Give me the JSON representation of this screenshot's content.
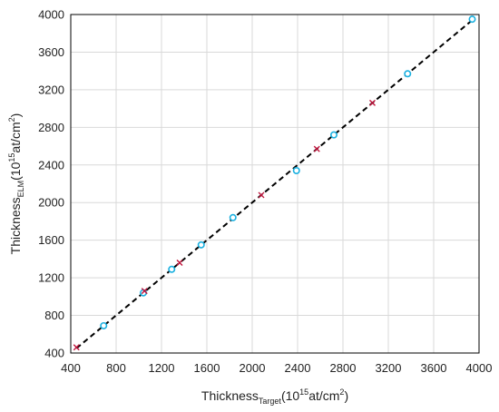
{
  "chart_data": {
    "type": "scatter",
    "title": "",
    "xlabel": {
      "main": "Thickness",
      "sub": "Target",
      "pre": "(10",
      "sup": "15",
      "post": "at/cm",
      "sup2": "2",
      "end": ")"
    },
    "ylabel": {
      "main": "Thickness",
      "sub": "ELM",
      "pre": "(10",
      "sup": "15",
      "post": "at/cm",
      "sup2": "2",
      "end": ")"
    },
    "xlim": [
      400,
      4000
    ],
    "ylim": [
      400,
      4000
    ],
    "xticks": [
      400,
      800,
      1200,
      1600,
      2000,
      2400,
      2800,
      3200,
      3600,
      4000
    ],
    "yticks": [
      400,
      800,
      1200,
      1600,
      2000,
      2400,
      2800,
      3200,
      3600,
      4000
    ],
    "tick_labels_x": [
      "400",
      "800",
      "1200",
      "1600",
      "2000",
      "2400",
      "2800",
      "3200",
      "3600",
      "4000"
    ],
    "tick_labels_y": [
      "400",
      "800",
      "1200",
      "1600",
      "2000",
      "2400",
      "2800",
      "3200",
      "3600",
      "4000"
    ],
    "grid": true,
    "legend": "none",
    "series": [
      {
        "marker": "circle",
        "color": "#1ab0e0",
        "x": [
          690,
          1040,
          1290,
          1550,
          1830,
          2390,
          2720,
          3370,
          3940
        ],
        "y": [
          690,
          1040,
          1290,
          1550,
          1840,
          2340,
          2720,
          3370,
          3950
        ]
      },
      {
        "marker": "cross",
        "color": "#c0143c",
        "x": [
          450,
          1050,
          1360,
          2080,
          2570,
          3060
        ],
        "y": [
          460,
          1060,
          1360,
          2080,
          2570,
          3060
        ]
      }
    ],
    "reference_line": {
      "style": "dashed",
      "color": "#000000",
      "x": [
        450,
        3950
      ],
      "y": [
        450,
        3950
      ]
    }
  }
}
